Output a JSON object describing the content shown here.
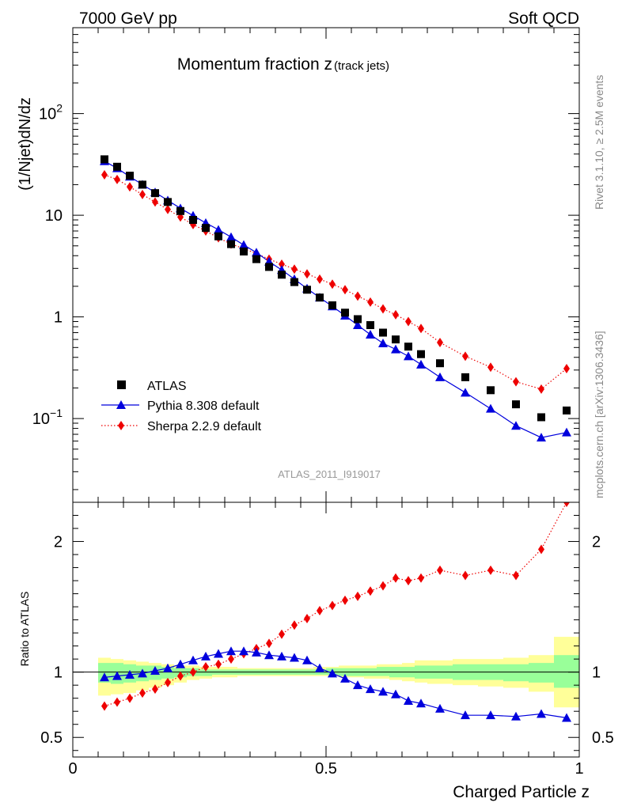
{
  "header": {
    "left": "7000 GeV pp",
    "right": "Soft QCD"
  },
  "side": {
    "rivet": "Rivet 3.1.10, ≥ 2.5M events",
    "mcplots": "mcplots.cern.ch [arXiv:1306.3436]"
  },
  "chart_data": [
    {
      "type": "scatter",
      "title": "Momentum fraction z",
      "title_sub": "(track jets)",
      "ylabel": "(1/Njet)dN/dz",
      "y_scale": "log",
      "ylim": [
        0.015,
        700
      ],
      "xlim": [
        0,
        1
      ],
      "yticks": [
        {
          "value": 0.1,
          "base": "10",
          "exp": "−1"
        },
        {
          "value": 1,
          "label": "1"
        },
        {
          "value": 10,
          "label": "10"
        },
        {
          "value": 100,
          "base": "10",
          "exp": "2"
        }
      ],
      "legend_position": "bottom-left",
      "analysis_id": "ATLAS_2011_I919017",
      "x": [
        0.0625,
        0.0875,
        0.1125,
        0.1375,
        0.1625,
        0.1875,
        0.2125,
        0.2375,
        0.2625,
        0.2875,
        0.3125,
        0.3375,
        0.3625,
        0.3875,
        0.4125,
        0.4375,
        0.4625,
        0.4875,
        0.5125,
        0.5375,
        0.5625,
        0.5875,
        0.6125,
        0.6375,
        0.6625,
        0.6875,
        0.725,
        0.775,
        0.825,
        0.875,
        0.925,
        0.975
      ],
      "series": [
        {
          "name": "ATLAS",
          "color": "#000000",
          "marker": "square",
          "line": "none",
          "values": [
            35.5,
            30.0,
            24.5,
            20.0,
            16.5,
            13.5,
            11.0,
            9.0,
            7.5,
            6.2,
            5.2,
            4.4,
            3.7,
            3.1,
            2.6,
            2.2,
            1.85,
            1.55,
            1.3,
            1.1,
            0.95,
            0.83,
            0.7,
            0.6,
            0.51,
            0.43,
            0.35,
            0.255,
            0.19,
            0.138,
            0.103,
            0.12
          ]
        },
        {
          "name": "Pythia 8.308 default",
          "color": "#0000dd",
          "marker": "triangle",
          "line": "solid",
          "values": [
            34.0,
            29.0,
            24.0,
            20.0,
            16.8,
            14.0,
            11.7,
            9.9,
            8.4,
            7.2,
            6.1,
            5.1,
            4.3,
            3.5,
            2.9,
            2.35,
            1.9,
            1.55,
            1.27,
            1.03,
            0.83,
            0.67,
            0.55,
            0.48,
            0.41,
            0.34,
            0.255,
            0.18,
            0.125,
            0.085,
            0.065,
            0.073
          ]
        },
        {
          "name": "Sherpa 2.2.9 default",
          "color": "#ee0000",
          "marker": "diamond",
          "line": "dotted",
          "values": [
            25.0,
            22.5,
            19.0,
            16.0,
            13.5,
            11.4,
            9.6,
            8.1,
            7.0,
            6.0,
            5.2,
            4.7,
            4.2,
            3.7,
            3.3,
            2.95,
            2.65,
            2.35,
            2.1,
            1.85,
            1.6,
            1.4,
            1.2,
            1.05,
            0.9,
            0.77,
            0.56,
            0.41,
            0.32,
            0.23,
            0.195,
            0.31
          ]
        }
      ]
    },
    {
      "type": "scatter",
      "ylabel": "Ratio to ATLAS",
      "xlabel": "Charged Particle z",
      "ylim": [
        0.35,
        2.3
      ],
      "xlim": [
        0,
        1
      ],
      "xticks": [
        {
          "value": 0,
          "label": "0"
        },
        {
          "value": 0.5,
          "label": "0.5"
        },
        {
          "value": 1,
          "label": "1"
        }
      ],
      "yticks": [
        {
          "value": 0.5,
          "label": "0.5"
        },
        {
          "value": 1,
          "label": "1"
        },
        {
          "value": 2,
          "label": "2"
        }
      ],
      "ratio_x": [
        0.0625,
        0.0875,
        0.1125,
        0.1375,
        0.1625,
        0.1875,
        0.2125,
        0.2375,
        0.2625,
        0.2875,
        0.3125,
        0.3375,
        0.3625,
        0.3875,
        0.4125,
        0.4375,
        0.4625,
        0.4875,
        0.5125,
        0.5375,
        0.5625,
        0.5875,
        0.6125,
        0.6375,
        0.6625,
        0.6875,
        0.725,
        0.775,
        0.825,
        0.875,
        0.925,
        0.975
      ],
      "bands": {
        "outer_color": "#ffff99",
        "inner_color": "#99ff99",
        "bins": [
          {
            "x0": 0.05,
            "x1": 0.075,
            "lo": 0.82,
            "hi": 1.11,
            "ilo": 0.92,
            "ihi": 1.07
          },
          {
            "x0": 0.075,
            "x1": 0.1,
            "lo": 0.83,
            "hi": 1.1,
            "ilo": 0.91,
            "ihi": 1.07
          },
          {
            "x0": 0.1,
            "x1": 0.125,
            "lo": 0.84,
            "hi": 1.09,
            "ilo": 0.92,
            "ihi": 1.06
          },
          {
            "x0": 0.125,
            "x1": 0.15,
            "lo": 0.86,
            "hi": 1.08,
            "ilo": 0.93,
            "ihi": 1.05
          },
          {
            "x0": 0.15,
            "x1": 0.175,
            "lo": 0.88,
            "hi": 1.07,
            "ilo": 0.94,
            "ihi": 1.05
          },
          {
            "x0": 0.175,
            "x1": 0.2,
            "lo": 0.9,
            "hi": 1.06,
            "ilo": 0.95,
            "ihi": 1.04
          },
          {
            "x0": 0.2,
            "x1": 0.225,
            "lo": 0.92,
            "hi": 1.05,
            "ilo": 0.96,
            "ihi": 1.03
          },
          {
            "x0": 0.225,
            "x1": 0.25,
            "lo": 0.94,
            "hi": 1.05,
            "ilo": 0.97,
            "ihi": 1.03
          },
          {
            "x0": 0.25,
            "x1": 0.275,
            "lo": 0.95,
            "hi": 1.04,
            "ilo": 0.97,
            "ihi": 1.02
          },
          {
            "x0": 0.275,
            "x1": 0.3,
            "lo": 0.96,
            "hi": 1.04,
            "ilo": 0.98,
            "ihi": 1.02
          },
          {
            "x0": 0.3,
            "x1": 0.325,
            "lo": 0.96,
            "hi": 1.04,
            "ilo": 0.98,
            "ihi": 1.02
          },
          {
            "x0": 0.325,
            "x1": 0.35,
            "lo": 0.97,
            "hi": 1.03,
            "ilo": 0.98,
            "ihi": 1.02
          },
          {
            "x0": 0.35,
            "x1": 0.375,
            "lo": 0.97,
            "hi": 1.03,
            "ilo": 0.98,
            "ihi": 1.02
          },
          {
            "x0": 0.375,
            "x1": 0.4,
            "lo": 0.97,
            "hi": 1.03,
            "ilo": 0.98,
            "ihi": 1.02
          },
          {
            "x0": 0.4,
            "x1": 0.425,
            "lo": 0.97,
            "hi": 1.03,
            "ilo": 0.98,
            "ihi": 1.02
          },
          {
            "x0": 0.425,
            "x1": 0.45,
            "lo": 0.97,
            "hi": 1.03,
            "ilo": 0.98,
            "ihi": 1.02
          },
          {
            "x0": 0.45,
            "x1": 0.475,
            "lo": 0.97,
            "hi": 1.03,
            "ilo": 0.98,
            "ihi": 1.02
          },
          {
            "x0": 0.475,
            "x1": 0.5,
            "lo": 0.97,
            "hi": 1.04,
            "ilo": 0.98,
            "ihi": 1.02
          },
          {
            "x0": 0.5,
            "x1": 0.525,
            "lo": 0.97,
            "hi": 1.04,
            "ilo": 0.98,
            "ihi": 1.03
          },
          {
            "x0": 0.525,
            "x1": 0.55,
            "lo": 0.96,
            "hi": 1.05,
            "ilo": 0.97,
            "ihi": 1.03
          },
          {
            "x0": 0.55,
            "x1": 0.575,
            "lo": 0.96,
            "hi": 1.05,
            "ilo": 0.97,
            "ihi": 1.03
          },
          {
            "x0": 0.575,
            "x1": 0.6,
            "lo": 0.95,
            "hi": 1.05,
            "ilo": 0.97,
            "ihi": 1.03
          },
          {
            "x0": 0.6,
            "x1": 0.625,
            "lo": 0.95,
            "hi": 1.06,
            "ilo": 0.97,
            "ihi": 1.04
          },
          {
            "x0": 0.625,
            "x1": 0.65,
            "lo": 0.94,
            "hi": 1.06,
            "ilo": 0.96,
            "ihi": 1.04
          },
          {
            "x0": 0.65,
            "x1": 0.675,
            "lo": 0.93,
            "hi": 1.07,
            "ilo": 0.96,
            "ihi": 1.04
          },
          {
            "x0": 0.675,
            "x1": 0.7,
            "lo": 0.92,
            "hi": 1.09,
            "ilo": 0.95,
            "ihi": 1.05
          },
          {
            "x0": 0.7,
            "x1": 0.75,
            "lo": 0.91,
            "hi": 1.09,
            "ilo": 0.95,
            "ihi": 1.05
          },
          {
            "x0": 0.75,
            "x1": 0.8,
            "lo": 0.9,
            "hi": 1.1,
            "ilo": 0.94,
            "ihi": 1.06
          },
          {
            "x0": 0.8,
            "x1": 0.85,
            "lo": 0.89,
            "hi": 1.1,
            "ilo": 0.94,
            "ihi": 1.06
          },
          {
            "x0": 0.85,
            "x1": 0.9,
            "lo": 0.88,
            "hi": 1.11,
            "ilo": 0.93,
            "ihi": 1.06
          },
          {
            "x0": 0.9,
            "x1": 0.95,
            "lo": 0.85,
            "hi": 1.13,
            "ilo": 0.92,
            "ihi": 1.07
          },
          {
            "x0": 0.95,
            "x1": 1.0,
            "lo": 0.73,
            "hi": 1.27,
            "ilo": 0.88,
            "ihi": 1.13
          }
        ]
      },
      "series": [
        {
          "name": "Pythia 8.308 default",
          "color": "#0000dd",
          "marker": "triangle",
          "line": "solid",
          "values": [
            0.96,
            0.97,
            0.98,
            0.99,
            1.01,
            1.03,
            1.06,
            1.09,
            1.12,
            1.14,
            1.16,
            1.16,
            1.15,
            1.13,
            1.12,
            1.11,
            1.09,
            1.03,
            0.99,
            0.95,
            0.9,
            0.87,
            0.85,
            0.83,
            0.78,
            0.76,
            0.72,
            0.67,
            0.67,
            0.66,
            0.68,
            0.65
          ]
        },
        {
          "name": "Sherpa 2.2.9 default",
          "color": "#ee0000",
          "marker": "diamond",
          "line": "dotted",
          "values": [
            0.74,
            0.77,
            0.8,
            0.84,
            0.87,
            0.92,
            0.97,
            1.0,
            1.04,
            1.06,
            1.1,
            1.14,
            1.18,
            1.22,
            1.29,
            1.36,
            1.41,
            1.47,
            1.51,
            1.55,
            1.58,
            1.62,
            1.66,
            1.72,
            1.7,
            1.72,
            1.78,
            1.74,
            1.78,
            1.74,
            1.94,
            2.3
          ]
        }
      ]
    }
  ]
}
